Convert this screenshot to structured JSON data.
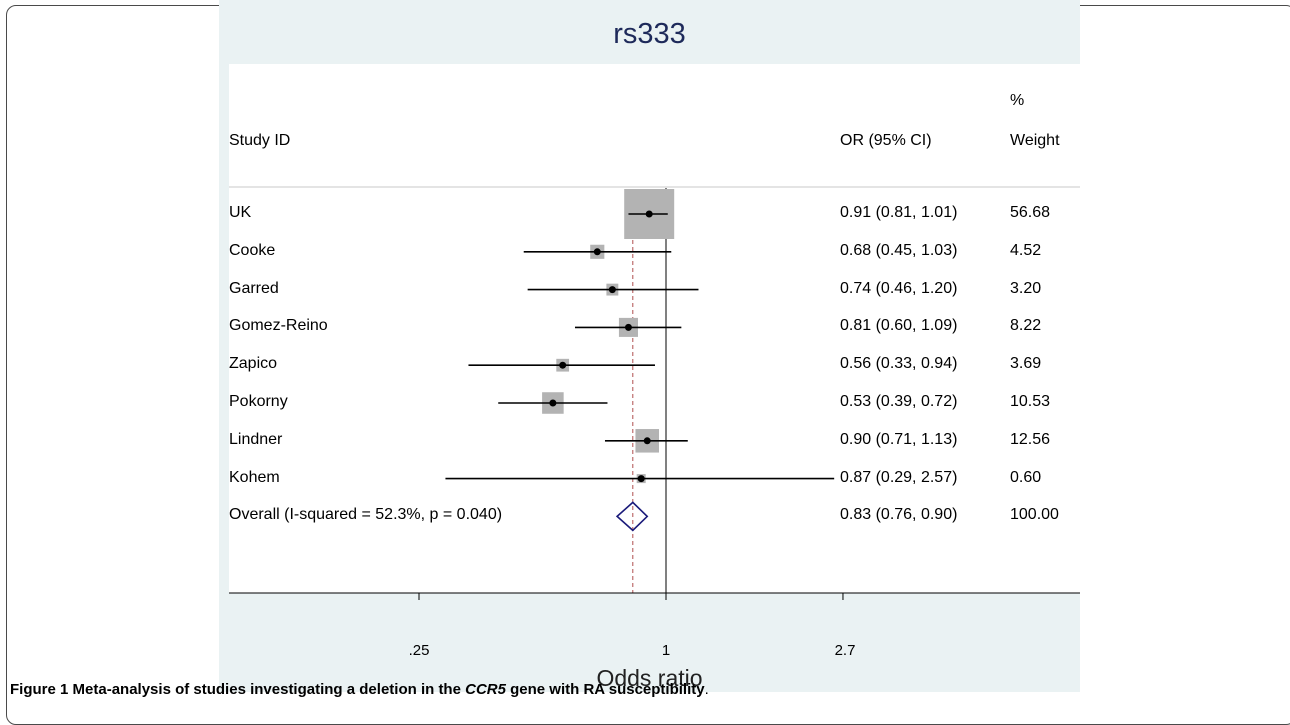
{
  "chart_data": {
    "type": "forest",
    "title": "rs333",
    "xlabel": "Odds ratio",
    "x_scale": "log",
    "x_ticks": [
      0.25,
      1,
      2.7
    ],
    "x_tick_labels": [
      ".25",
      "1",
      "2.7"
    ],
    "xlim": [
      0.166,
      3.7
    ],
    "reference_line": 1,
    "overall_line": 0.83,
    "headers": {
      "study": "Study ID",
      "or_ci": "OR (95% CI)",
      "weight_top": "%",
      "weight_bottom": "Weight"
    },
    "studies": [
      {
        "study": "UK",
        "or": 0.91,
        "lo": 0.81,
        "hi": 1.01,
        "or_ci_text": "0.91 (0.81, 1.01)",
        "weight": "56.68"
      },
      {
        "study": "Cooke",
        "or": 0.68,
        "lo": 0.45,
        "hi": 1.03,
        "or_ci_text": "0.68 (0.45, 1.03)",
        "weight": "4.52"
      },
      {
        "study": "Garred",
        "or": 0.74,
        "lo": 0.46,
        "hi": 1.2,
        "or_ci_text": "0.74 (0.46, 1.20)",
        "weight": "3.20"
      },
      {
        "study": "Gomez-Reino",
        "or": 0.81,
        "lo": 0.6,
        "hi": 1.09,
        "or_ci_text": "0.81 (0.60, 1.09)",
        "weight": "8.22"
      },
      {
        "study": "Zapico",
        "or": 0.56,
        "lo": 0.33,
        "hi": 0.94,
        "or_ci_text": "0.56 (0.33, 0.94)",
        "weight": "3.69"
      },
      {
        "study": "Pokorny",
        "or": 0.53,
        "lo": 0.39,
        "hi": 0.72,
        "or_ci_text": "0.53 (0.39, 0.72)",
        "weight": "10.53"
      },
      {
        "study": "Lindner",
        "or": 0.9,
        "lo": 0.71,
        "hi": 1.13,
        "or_ci_text": "0.90 (0.71, 1.13)",
        "weight": "12.56"
      },
      {
        "study": "Kohem",
        "or": 0.87,
        "lo": 0.29,
        "hi": 2.57,
        "or_ci_text": "0.87 (0.29, 2.57)",
        "weight": "0.60"
      }
    ],
    "overall": {
      "study": "Overall  (I-squared = 52.3%, p = 0.040)",
      "or": 0.83,
      "lo": 0.76,
      "hi": 0.9,
      "or_ci_text": "0.83 (0.76, 0.90)",
      "weight": "100.00"
    },
    "colors": {
      "panel": "#eaf2f3",
      "box": "#b3b3b3",
      "diamond": "#1a1a7a",
      "overall_line": "#b05050",
      "title": "#1e2a5a"
    }
  },
  "caption": {
    "label": "Figure 1",
    "text_before": " Meta-analysis of studies investigating a deletion in the ",
    "gene": "CCR5",
    "text_after": " gene with RA susceptibility",
    "end": "."
  }
}
